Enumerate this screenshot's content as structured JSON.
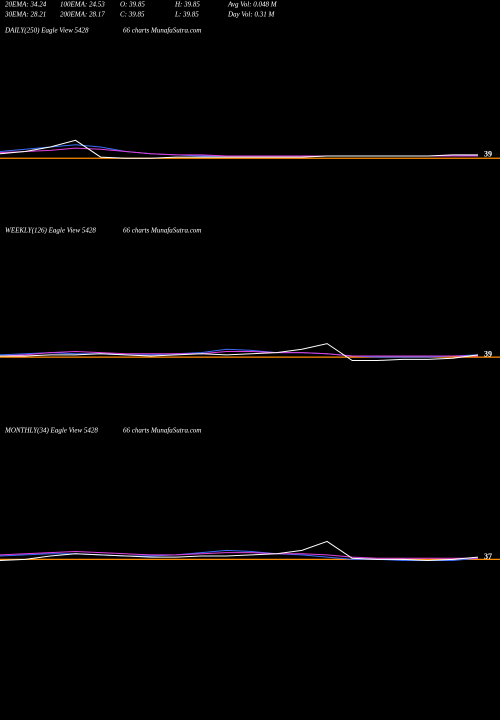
{
  "header": {
    "stats": [
      [
        "20EMA: 34.24",
        "100EMA: 24.53",
        "O: 39.85",
        "H: 39.85",
        "Avg Vol: 0.048  M"
      ],
      [
        "30EMA: 28.21",
        "200EMA: 28.17",
        "C: 39.85",
        "L: 39.85",
        "Day Vol: 0.31 M"
      ]
    ]
  },
  "chart_data": [
    {
      "type": "line",
      "title": "DAILY(250) Eagle  View 5428",
      "subtitle": "66  charts MunafaSutra.com",
      "last_label": "39",
      "ylim": [
        30,
        150
      ],
      "hline": {
        "value": 36,
        "color": "#ff8c00"
      },
      "series": [
        {
          "color": "#3a6cf5",
          "values": [
            42,
            44,
            46,
            48,
            46,
            42,
            40,
            39,
            38,
            38,
            38,
            38,
            38,
            38,
            38,
            38,
            38,
            38,
            38,
            39
          ]
        },
        {
          "color": "#e040e0",
          "values": [
            41,
            42,
            43,
            45,
            44,
            42,
            40,
            39,
            39,
            38,
            38,
            38,
            38,
            38,
            38,
            38,
            38,
            38,
            38,
            38
          ]
        },
        {
          "color": "#ffffff",
          "values": [
            40,
            42,
            46,
            52,
            37,
            36,
            36,
            37,
            37,
            37,
            37,
            37,
            37,
            38,
            38,
            38,
            38,
            38,
            39,
            39
          ]
        }
      ]
    },
    {
      "type": "line",
      "title": "WEEKLY(126) Eagle  View 5428",
      "subtitle": "66  charts MunafaSutra.com",
      "last_label": "39",
      "ylim": [
        30,
        150
      ],
      "hline": {
        "value": 37,
        "color": "#ff8c00"
      },
      "series": [
        {
          "color": "#3a6cf5",
          "values": [
            39,
            40,
            41,
            40,
            40,
            39,
            39,
            40,
            41,
            44,
            43,
            41,
            41,
            40,
            38,
            37,
            37,
            37,
            38,
            39
          ]
        },
        {
          "color": "#e040e0",
          "values": [
            38,
            39,
            41,
            42,
            41,
            40,
            40,
            40,
            40,
            42,
            42,
            41,
            41,
            40,
            38,
            38,
            38,
            38,
            38,
            38
          ]
        },
        {
          "color": "#ffffff",
          "values": [
            38,
            38,
            39,
            39,
            40,
            39,
            38,
            39,
            40,
            39,
            40,
            41,
            44,
            49,
            34,
            34,
            35,
            35,
            36,
            39
          ]
        }
      ]
    },
    {
      "type": "line",
      "title": "MONTHLY(34) Eagle  View 5428",
      "subtitle": "66  charts MunafaSutra.com",
      "last_label": "37",
      "ylim": [
        30,
        150
      ],
      "hline": {
        "value": 35,
        "color": "#ff8c00"
      },
      "series": [
        {
          "color": "#3a6cf5",
          "values": [
            38,
            39,
            40,
            40,
            39,
            38,
            38,
            39,
            41,
            43,
            42,
            40,
            39,
            37,
            35,
            35,
            34,
            34,
            34,
            36
          ]
        },
        {
          "color": "#e040e0",
          "values": [
            39,
            40,
            41,
            42,
            41,
            40,
            39,
            39,
            40,
            41,
            41,
            40,
            40,
            39,
            37,
            36,
            36,
            36,
            36,
            36
          ]
        },
        {
          "color": "#ffffff",
          "values": [
            34,
            35,
            38,
            40,
            39,
            38,
            37,
            37,
            38,
            38,
            39,
            40,
            43,
            51,
            36,
            35,
            35,
            34,
            35,
            37
          ]
        }
      ]
    }
  ]
}
